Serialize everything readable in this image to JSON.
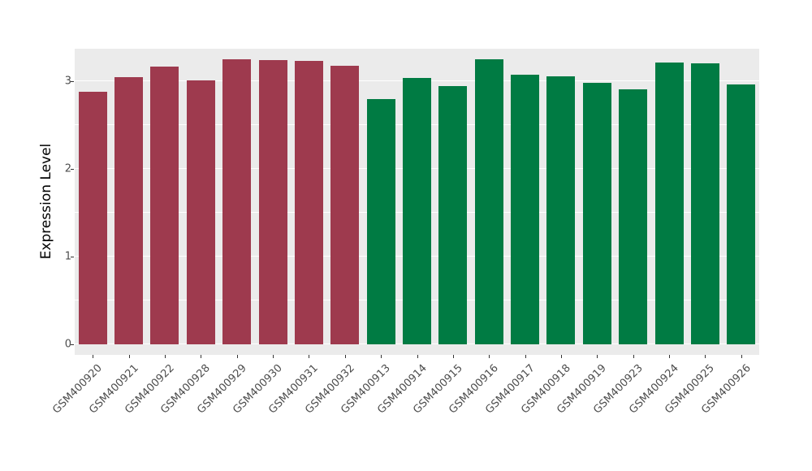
{
  "chart_data": {
    "type": "bar",
    "title": "",
    "xlabel": "",
    "ylabel": "Expression Level",
    "ylim": [
      0,
      3.37
    ],
    "yticks": [
      0,
      1,
      2,
      3
    ],
    "grid": true,
    "legend": "none",
    "panel_background": "#EBEBEB",
    "gridline_color": "#ffffff",
    "categories": [
      "GSM400920",
      "GSM400921",
      "GSM400922",
      "GSM400928",
      "GSM400929",
      "GSM400930",
      "GSM400931",
      "GSM400932",
      "GSM400913",
      "GSM400914",
      "GSM400915",
      "GSM400916",
      "GSM400917",
      "GSM400918",
      "GSM400919",
      "GSM400923",
      "GSM400924",
      "GSM400925",
      "GSM400926"
    ],
    "values": [
      2.88,
      3.05,
      3.17,
      3.01,
      3.25,
      3.24,
      3.23,
      3.18,
      2.8,
      3.04,
      2.94,
      3.25,
      3.07,
      3.06,
      2.98,
      2.91,
      3.21,
      3.2,
      2.96
    ],
    "bar_colors": [
      "#9E3A4E",
      "#9E3A4E",
      "#9E3A4E",
      "#9E3A4E",
      "#9E3A4E",
      "#9E3A4E",
      "#9E3A4E",
      "#9E3A4E",
      "#007B43",
      "#007B43",
      "#007B43",
      "#007B43",
      "#007B43",
      "#007B43",
      "#007B43",
      "#007B43",
      "#007B43",
      "#007B43",
      "#007B43"
    ],
    "group_colors": {
      "group1": "#9E3A4E",
      "group2": "#007B43"
    }
  }
}
